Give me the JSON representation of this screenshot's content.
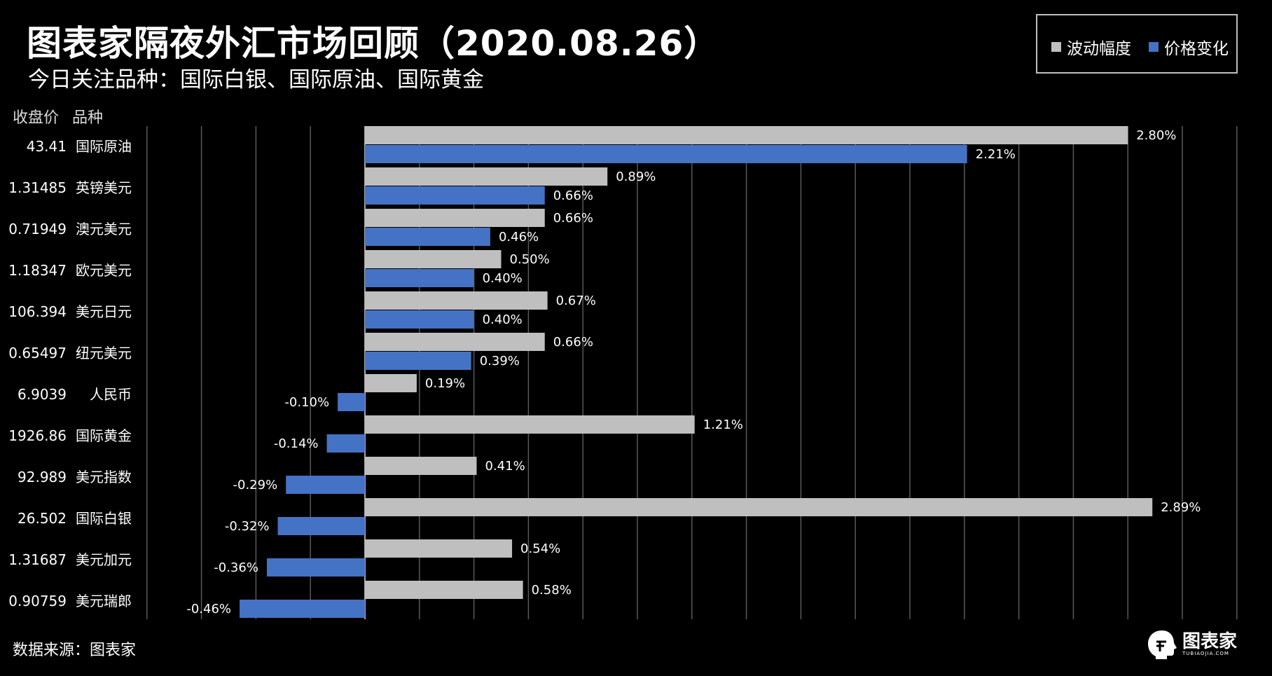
{
  "header": {
    "title": "图表家隔夜外汇市场回顾（2020.08.26）",
    "subtitle": "今日关注品种：国际白银、国际原油、国际黄金"
  },
  "table_headers": {
    "price": "收盘价",
    "name": "品种"
  },
  "legend": [
    {
      "label": "波动幅度",
      "color": "#bfbfbf"
    },
    {
      "label": "价格变化",
      "color": "#4472c4"
    }
  ],
  "footer": {
    "source": "数据来源：图表家"
  },
  "logo": {
    "text": "图表家",
    "sub": "TUBIAOJIA.COM"
  },
  "chart_data": {
    "type": "bar",
    "orientation": "horizontal",
    "categories": [
      "国际原油",
      "英镑美元",
      "澳元美元",
      "欧元美元",
      "美元日元",
      "纽元美元",
      "人民币",
      "国际黄金",
      "美元指数",
      "国际白银",
      "美元加元",
      "美元瑞郎"
    ],
    "closing_prices": [
      "43.41",
      "1.31485",
      "0.71949",
      "1.18347",
      "106.394",
      "0.65497",
      "6.9039",
      "1926.86",
      "92.989",
      "26.502",
      "1.31687",
      "0.90759"
    ],
    "series": [
      {
        "name": "波动幅度",
        "color": "#bfbfbf",
        "values": [
          2.8,
          0.89,
          0.66,
          0.5,
          0.67,
          0.66,
          0.19,
          1.21,
          0.41,
          2.89,
          0.54,
          0.58
        ]
      },
      {
        "name": "价格变化",
        "color": "#4472c4",
        "values": [
          2.21,
          0.66,
          0.46,
          0.4,
          0.4,
          0.39,
          -0.1,
          -0.14,
          -0.29,
          -0.32,
          -0.36,
          -0.46
        ]
      }
    ],
    "value_suffix": "%",
    "xlim": [
      -0.8,
      3.2
    ],
    "grid_step": 0.2,
    "grid": true,
    "legend_position": "top-right"
  }
}
